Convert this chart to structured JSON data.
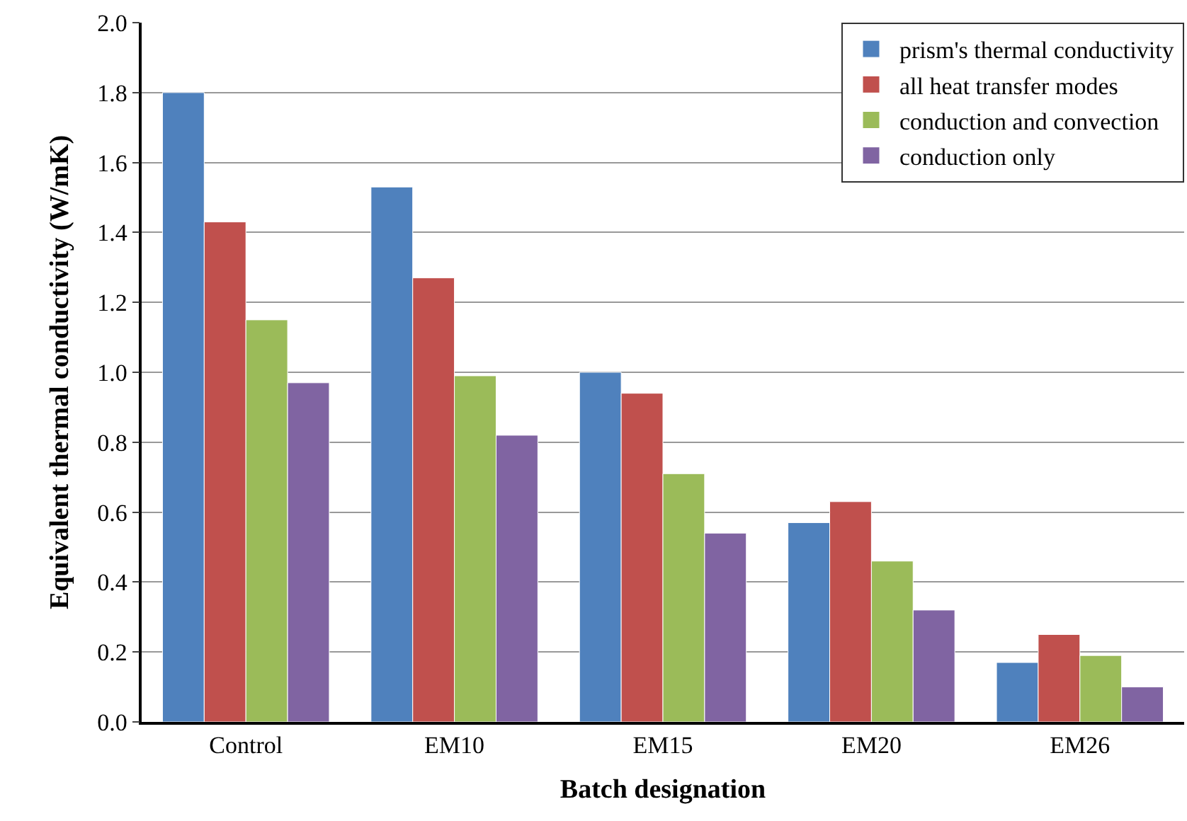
{
  "chart_data": {
    "type": "bar",
    "xlabel": "Batch designation",
    "ylabel": "Equivalent thermal conductivity (W/mK)",
    "categories": [
      "Control",
      "EM10",
      "EM15",
      "EM20",
      "EM26"
    ],
    "series": [
      {
        "name": "prism's thermal conductivity",
        "color": "#4f81bd",
        "values": [
          1.8,
          1.53,
          1.0,
          0.57,
          0.17
        ]
      },
      {
        "name": "all heat transfer modes",
        "color": "#c0504d",
        "values": [
          1.43,
          1.27,
          0.94,
          0.63,
          0.25
        ]
      },
      {
        "name": "conduction and convection",
        "color": "#9bbb59",
        "values": [
          1.15,
          0.99,
          0.71,
          0.46,
          0.19
        ]
      },
      {
        "name": "conduction only",
        "color": "#8064a2",
        "values": [
          0.97,
          0.82,
          0.54,
          0.32,
          0.1
        ]
      }
    ],
    "ylim": [
      0,
      2.0
    ],
    "yticks": [
      {
        "value": 0,
        "label": "0.0"
      },
      {
        "value": 0.2,
        "label": "0.2"
      },
      {
        "value": 0.4,
        "label": "0.4"
      },
      {
        "value": 0.6,
        "label": "0.6"
      },
      {
        "value": 0.8,
        "label": "0.8"
      },
      {
        "value": 1.0,
        "label": "1.0"
      },
      {
        "value": 1.2,
        "label": "1.2"
      },
      {
        "value": 1.4,
        "label": "1.4"
      },
      {
        "value": 1.6,
        "label": "1.6"
      },
      {
        "value": 1.8,
        "label": "1.8"
      },
      {
        "value": 2.0,
        "label": "2.0"
      }
    ],
    "grid": "y",
    "legend": "top right"
  }
}
